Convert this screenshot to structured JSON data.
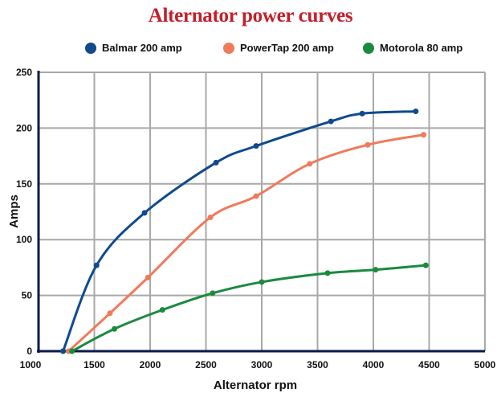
{
  "chart_data": {
    "type": "line",
    "title": "Alternator power curves",
    "xlabel": "Alternator rpm",
    "ylabel": "Amps",
    "xlim": [
      1000,
      5000
    ],
    "ylim": [
      0,
      250
    ],
    "xticks": [
      "1000",
      "1500",
      "2000",
      "2500",
      "3000",
      "3500",
      "4000",
      "4500",
      "5000"
    ],
    "yticks": [
      "0",
      "50",
      "100",
      "150",
      "200",
      "250"
    ],
    "grid": true,
    "legend_position": "top",
    "series": [
      {
        "name": "Balmar 200 amp",
        "color": "#0e4a8c",
        "x": [
          1220,
          1520,
          1950,
          2590,
          2950,
          3620,
          3900,
          4380
        ],
        "y": [
          0,
          77,
          124,
          169,
          184,
          206,
          213,
          215
        ]
      },
      {
        "name": "PowerTap 200 amp",
        "color": "#f07a5a",
        "x": [
          1270,
          1640,
          1980,
          2540,
          2950,
          3430,
          3950,
          4450
        ],
        "y": [
          0,
          34,
          66,
          120,
          139,
          168,
          185,
          194
        ]
      },
      {
        "name": "Motorola 80 amp",
        "color": "#1a8a3e",
        "x": [
          1300,
          1680,
          2110,
          2560,
          3000,
          3590,
          4020,
          4470
        ],
        "y": [
          0,
          20,
          37,
          52,
          62,
          70,
          73,
          77
        ]
      }
    ]
  }
}
